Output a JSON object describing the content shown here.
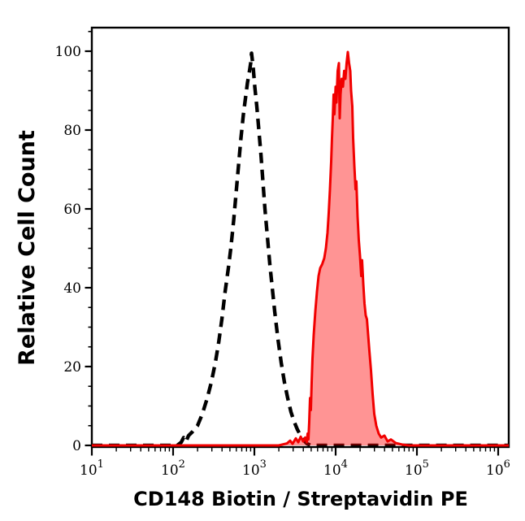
{
  "figure": {
    "background": "#ffffff",
    "border_color": "#000000"
  },
  "chart_data": {
    "type": "area",
    "subtype": "flow-cytometry-histogram-overlay",
    "title": "",
    "xlabel": "CD148 Biotin / Streptavidin PE",
    "ylabel": "Relative Cell Count",
    "x_scale": "log10",
    "xlim_exp": [
      1.0,
      6.13
    ],
    "x_tick_exponents": [
      1,
      2,
      3,
      4,
      5,
      6
    ],
    "x_tick_base": "10",
    "x_log_minor_ticks": true,
    "ylim": [
      0,
      106
    ],
    "y_ticks": [
      0,
      20,
      40,
      60,
      80,
      100
    ],
    "y_minor_step": 5,
    "grid": false,
    "legend_position": "none",
    "series": [
      {
        "name": "black-dashed-curve",
        "type": "line",
        "line_style": "dashed",
        "color": "#000000",
        "fill": "none",
        "peak_x": 920,
        "peak_y": 99.5,
        "points_log10x_y": [
          [
            1.0,
            0
          ],
          [
            2.05,
            0
          ],
          [
            2.1,
            0.8
          ],
          [
            2.13,
            2
          ],
          [
            2.16,
            1
          ],
          [
            2.19,
            2.5
          ],
          [
            2.24,
            3.5
          ],
          [
            2.3,
            5
          ],
          [
            2.36,
            8
          ],
          [
            2.42,
            12
          ],
          [
            2.47,
            16
          ],
          [
            2.52,
            21
          ],
          [
            2.56,
            26
          ],
          [
            2.6,
            32
          ],
          [
            2.64,
            39
          ],
          [
            2.68,
            45
          ],
          [
            2.71,
            50
          ],
          [
            2.745,
            57
          ],
          [
            2.775,
            64
          ],
          [
            2.805,
            71
          ],
          [
            2.835,
            78
          ],
          [
            2.865,
            84
          ],
          [
            2.89,
            88
          ],
          [
            2.915,
            92
          ],
          [
            2.94,
            95
          ],
          [
            2.955,
            97
          ],
          [
            2.965,
            99.5
          ],
          [
            2.985,
            96
          ],
          [
            3.005,
            91
          ],
          [
            3.03,
            86
          ],
          [
            3.055,
            80
          ],
          [
            3.08,
            74
          ],
          [
            3.105,
            67
          ],
          [
            3.13,
            60
          ],
          [
            3.16,
            53
          ],
          [
            3.19,
            46
          ],
          [
            3.22,
            40
          ],
          [
            3.25,
            34
          ],
          [
            3.29,
            27
          ],
          [
            3.33,
            21
          ],
          [
            3.37,
            16
          ],
          [
            3.41,
            12
          ],
          [
            3.45,
            8.5
          ],
          [
            3.49,
            6
          ],
          [
            3.53,
            4
          ],
          [
            3.57,
            2.5
          ],
          [
            3.61,
            1.2
          ],
          [
            3.65,
            0.4
          ],
          [
            3.7,
            0
          ],
          [
            6.13,
            0
          ]
        ]
      },
      {
        "name": "red-filled-curve",
        "type": "area",
        "line_style": "solid",
        "color": "#f10000",
        "fill": "#ff0000",
        "fill_opacity": 0.42,
        "peak_x": 14000,
        "peak_y": 99.8,
        "points_log10x_y": [
          [
            1.0,
            0
          ],
          [
            3.3,
            0
          ],
          [
            3.4,
            0.5
          ],
          [
            3.44,
            1.2
          ],
          [
            3.47,
            0.4
          ],
          [
            3.51,
            1.8
          ],
          [
            3.54,
            0.8
          ],
          [
            3.57,
            2.2
          ],
          [
            3.6,
            1
          ],
          [
            3.625,
            2
          ],
          [
            3.645,
            0.8
          ],
          [
            3.655,
            3
          ],
          [
            3.665,
            1.5
          ],
          [
            3.675,
            6
          ],
          [
            3.685,
            12
          ],
          [
            3.695,
            9
          ],
          [
            3.705,
            16
          ],
          [
            3.715,
            22
          ],
          [
            3.73,
            28
          ],
          [
            3.75,
            34
          ],
          [
            3.77,
            39
          ],
          [
            3.79,
            43
          ],
          [
            3.81,
            45
          ],
          [
            3.835,
            46
          ],
          [
            3.86,
            47.5
          ],
          [
            3.88,
            50
          ],
          [
            3.9,
            54
          ],
          [
            3.915,
            59
          ],
          [
            3.93,
            65
          ],
          [
            3.945,
            72
          ],
          [
            3.955,
            78
          ],
          [
            3.965,
            83
          ],
          [
            3.975,
            89
          ],
          [
            3.985,
            84
          ],
          [
            4.0,
            91
          ],
          [
            4.01,
            87
          ],
          [
            4.025,
            95
          ],
          [
            4.04,
            97
          ],
          [
            4.05,
            83
          ],
          [
            4.06,
            89
          ],
          [
            4.075,
            93
          ],
          [
            4.09,
            91
          ],
          [
            4.105,
            95
          ],
          [
            4.12,
            93
          ],
          [
            4.135,
            97
          ],
          [
            4.15,
            99.8
          ],
          [
            4.165,
            97
          ],
          [
            4.18,
            95
          ],
          [
            4.19,
            90
          ],
          [
            4.205,
            86
          ],
          [
            4.215,
            78
          ],
          [
            4.23,
            71
          ],
          [
            4.245,
            65
          ],
          [
            4.255,
            67
          ],
          [
            4.27,
            58
          ],
          [
            4.285,
            52
          ],
          [
            4.3,
            48
          ],
          [
            4.315,
            43
          ],
          [
            4.325,
            47
          ],
          [
            4.34,
            41
          ],
          [
            4.355,
            36
          ],
          [
            4.37,
            33
          ],
          [
            4.385,
            32
          ],
          [
            4.4,
            28
          ],
          [
            4.415,
            24
          ],
          [
            4.435,
            19
          ],
          [
            4.455,
            13
          ],
          [
            4.475,
            8
          ],
          [
            4.5,
            5
          ],
          [
            4.53,
            3
          ],
          [
            4.56,
            2
          ],
          [
            4.6,
            2.5
          ],
          [
            4.64,
            1
          ],
          [
            4.68,
            1.5
          ],
          [
            4.74,
            0.6
          ],
          [
            4.82,
            0.2
          ],
          [
            4.9,
            0
          ],
          [
            6.13,
            0
          ]
        ]
      }
    ]
  }
}
